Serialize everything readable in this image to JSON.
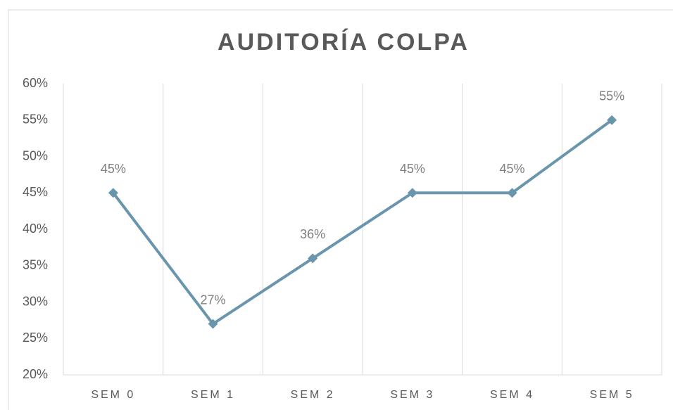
{
  "chart_data": {
    "type": "line",
    "title": "AUDITORÍA COLPA",
    "categories": [
      "SEM 0",
      "SEM 1",
      "SEM 2",
      "SEM 3",
      "SEM 4",
      "SEM 5"
    ],
    "series": [
      {
        "name": "AUDITORÍA COLPA",
        "color": "#6a96ad",
        "values": [
          45,
          27,
          36,
          45,
          45,
          55
        ],
        "value_labels": [
          "45%",
          "27%",
          "36%",
          "45%",
          "45%",
          "55%"
        ]
      }
    ],
    "ylim": [
      20,
      60
    ],
    "yticks": [
      {
        "value": 20,
        "label": "20%"
      },
      {
        "value": 25,
        "label": "25%"
      },
      {
        "value": 30,
        "label": "30%"
      },
      {
        "value": 35,
        "label": "35%"
      },
      {
        "value": 40,
        "label": "40%"
      },
      {
        "value": 45,
        "label": "45%"
      },
      {
        "value": 50,
        "label": "50%"
      },
      {
        "value": 55,
        "label": "55%"
      },
      {
        "value": 60,
        "label": "60%"
      }
    ],
    "grid": true
  }
}
